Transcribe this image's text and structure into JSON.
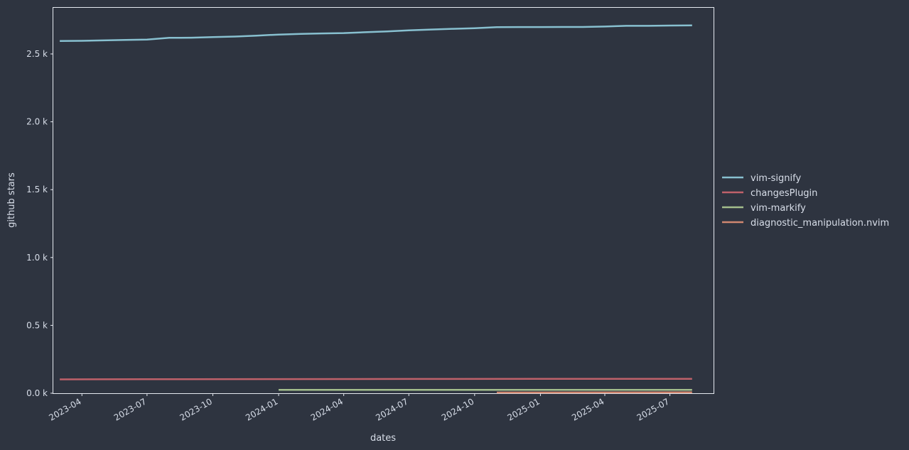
{
  "chart_data": {
    "type": "line",
    "xlabel": "dates",
    "ylabel": "github stars",
    "grid": false,
    "legend_position": "right",
    "x_domain": [
      "2023-02-20",
      "2025-08-31"
    ],
    "ylim": [
      0,
      2840
    ],
    "x_ticks": [
      "2023-04",
      "2023-07",
      "2023-10",
      "2024-01",
      "2024-04",
      "2024-07",
      "2024-10",
      "2025-01",
      "2025-04",
      "2025-07"
    ],
    "y_ticks": [
      {
        "value": 0,
        "label": "0.0 k"
      },
      {
        "value": 500,
        "label": "0.5 k"
      },
      {
        "value": 1000,
        "label": "1.0 k"
      },
      {
        "value": 1500,
        "label": "1.5 k"
      },
      {
        "value": 2000,
        "label": "2.0 k"
      },
      {
        "value": 2500,
        "label": "2.5 k"
      }
    ],
    "series": [
      {
        "name": "vim-signify",
        "color": "#88c0d0",
        "points": [
          [
            "2023-03-01",
            2596
          ],
          [
            "2023-04-01",
            2597
          ],
          [
            "2023-05-01",
            2600
          ],
          [
            "2023-06-01",
            2603
          ],
          [
            "2023-07-01",
            2606
          ],
          [
            "2023-08-01",
            2619
          ],
          [
            "2023-09-01",
            2620
          ],
          [
            "2023-10-01",
            2624
          ],
          [
            "2023-11-01",
            2628
          ],
          [
            "2023-12-01",
            2635
          ],
          [
            "2024-01-01",
            2643
          ],
          [
            "2024-02-01",
            2648
          ],
          [
            "2024-03-01",
            2651
          ],
          [
            "2024-04-01",
            2654
          ],
          [
            "2024-05-01",
            2660
          ],
          [
            "2024-06-01",
            2666
          ],
          [
            "2024-07-01",
            2674
          ],
          [
            "2024-08-01",
            2680
          ],
          [
            "2024-09-01",
            2685
          ],
          [
            "2024-10-01",
            2690
          ],
          [
            "2024-11-01",
            2697
          ],
          [
            "2024-12-01",
            2698
          ],
          [
            "2025-01-01",
            2698
          ],
          [
            "2025-02-01",
            2699
          ],
          [
            "2025-03-01",
            2699
          ],
          [
            "2025-04-01",
            2702
          ],
          [
            "2025-05-01",
            2707
          ],
          [
            "2025-06-01",
            2707
          ],
          [
            "2025-07-01",
            2709
          ],
          [
            "2025-08-01",
            2711
          ]
        ]
      },
      {
        "name": "changesPlugin",
        "color": "#bf616a",
        "points": [
          [
            "2023-03-01",
            102
          ],
          [
            "2023-07-01",
            103
          ],
          [
            "2024-01-01",
            104
          ],
          [
            "2024-07-01",
            105
          ],
          [
            "2025-01-01",
            106
          ],
          [
            "2025-08-01",
            106
          ]
        ]
      },
      {
        "name": "vim-markify",
        "color": "#a3be8c",
        "points": [
          [
            "2024-01-01",
            25
          ],
          [
            "2024-07-01",
            25
          ],
          [
            "2025-01-01",
            25
          ],
          [
            "2025-08-01",
            25
          ]
        ]
      },
      {
        "name": "diagnostic_manipulation.nvim",
        "color": "#d08770",
        "points": [
          [
            "2024-11-01",
            5
          ],
          [
            "2025-04-01",
            6
          ],
          [
            "2025-08-01",
            7
          ]
        ]
      }
    ]
  }
}
